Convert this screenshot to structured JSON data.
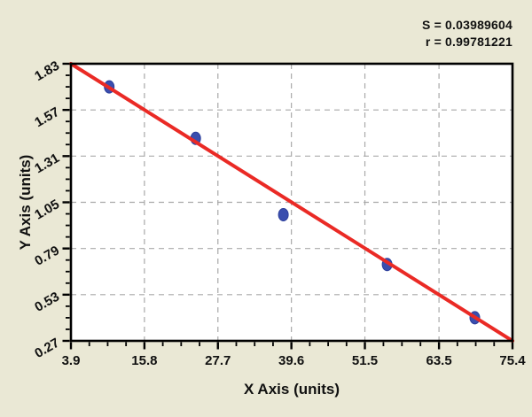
{
  "stats": {
    "s_label": "S = 0.03989604",
    "r_label": "r = 0.99781221"
  },
  "chart_data": {
    "type": "scatter",
    "title": "",
    "xlabel": "X Axis (units)",
    "ylabel": "Y Axis (units)",
    "x_ticks": [
      "3.9",
      "15.8",
      "27.7",
      "39.6",
      "51.5",
      "63.5",
      "75.4"
    ],
    "y_ticks": [
      "0.27",
      "0.53",
      "0.79",
      "1.05",
      "1.31",
      "1.57",
      "1.83"
    ],
    "xlim": [
      3.9,
      75.4
    ],
    "ylim": [
      0.27,
      1.83
    ],
    "minor_ticks_between_majors": 3,
    "grid": {
      "style": "dashed",
      "at": "interior major ticks",
      "visible": true
    },
    "legend": "none",
    "series": [
      {
        "name": "data-points",
        "type": "scatter",
        "points": [
          {
            "x": 10.1,
            "y": 1.7
          },
          {
            "x": 24.1,
            "y": 1.41
          },
          {
            "x": 38.3,
            "y": 0.98
          },
          {
            "x": 55.1,
            "y": 0.7
          },
          {
            "x": 69.3,
            "y": 0.4
          }
        ]
      },
      {
        "name": "regression-line",
        "type": "line",
        "points": [
          {
            "x": 3.9,
            "y": 1.83
          },
          {
            "x": 75.4,
            "y": 0.27
          }
        ]
      }
    ],
    "annotations": [
      "S = 0.03989604",
      "r = 0.99781221"
    ]
  },
  "colors": {
    "background": "#eae8d5",
    "plot_background": "#ffffff",
    "axis": "#000000",
    "grid": "#a9a9a9",
    "regression_line": "#ea2a25",
    "point_fill": "#3a4eae",
    "point_stroke": "#2c3e9b",
    "text": "#111111"
  }
}
